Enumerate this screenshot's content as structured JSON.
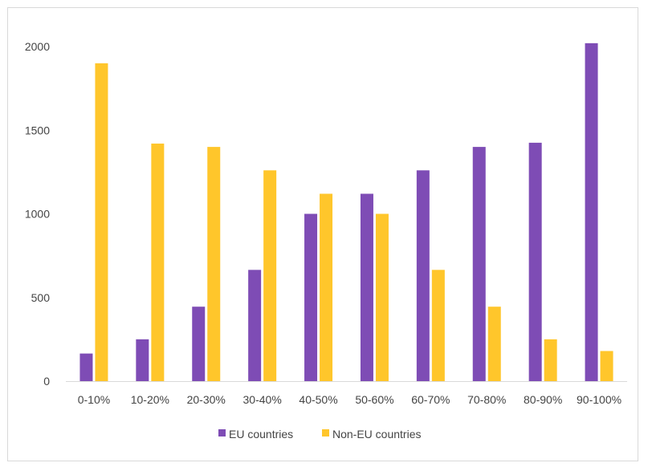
{
  "chart_data": {
    "type": "bar",
    "title": "",
    "xlabel": "",
    "ylabel": "",
    "categories": [
      "0-10%",
      "10-20%",
      "20-30%",
      "30-40%",
      "40-50%",
      "50-60%",
      "60-70%",
      "70-80%",
      "80-90%",
      "90-100%"
    ],
    "series": [
      {
        "name": "EU countries",
        "color": "#7E4CB5",
        "values": [
          165,
          250,
          445,
          665,
          1000,
          1120,
          1260,
          1400,
          1425,
          2020
        ]
      },
      {
        "name": "Non-EU countries",
        "color": "#FFC62B",
        "values": [
          1900,
          1420,
          1400,
          1260,
          1120,
          1000,
          665,
          445,
          250,
          180
        ]
      }
    ],
    "ylim": [
      0,
      2000
    ],
    "yticks": [
      "0",
      "500",
      "1000",
      "1500",
      "2000"
    ],
    "grid": false,
    "legend": "bottom-center"
  }
}
